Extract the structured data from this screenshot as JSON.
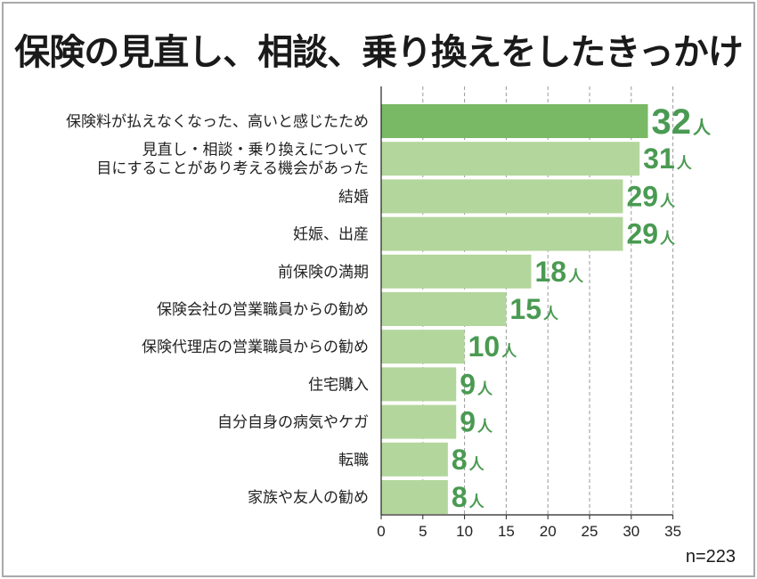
{
  "title": "保険の見直し、相談、乗り換えをしたきっかけ",
  "sample_note": "n=223",
  "colors": {
    "highlight_bar": "#79b865",
    "bar": "#b3d69c",
    "value_text": "#4a9a52",
    "grid": "#999999"
  },
  "chart_data": {
    "type": "bar",
    "orientation": "horizontal",
    "categories": [
      [
        "保険料が払えなくなった、高いと感じたため"
      ],
      [
        "見直し・相談・乗り換えについて",
        "目にすることがあり考える機会があった"
      ],
      [
        "結婚"
      ],
      [
        "妊娠、出産"
      ],
      [
        "前保険の満期"
      ],
      [
        "保険会社の営業職員からの勧め"
      ],
      [
        "保険代理店の営業職員からの勧め"
      ],
      [
        "住宅購入"
      ],
      [
        "自分自身の病気やケガ"
      ],
      [
        "転職"
      ],
      [
        "家族や友人の勧め"
      ]
    ],
    "values": [
      32,
      31,
      29,
      29,
      18,
      15,
      10,
      9,
      9,
      8,
      8
    ],
    "unit": "人",
    "xlim": [
      0,
      35
    ],
    "xticks": [
      0,
      5,
      10,
      15,
      20,
      25,
      30,
      35
    ],
    "grid": "vertical dashed",
    "highlight_index": 0
  }
}
